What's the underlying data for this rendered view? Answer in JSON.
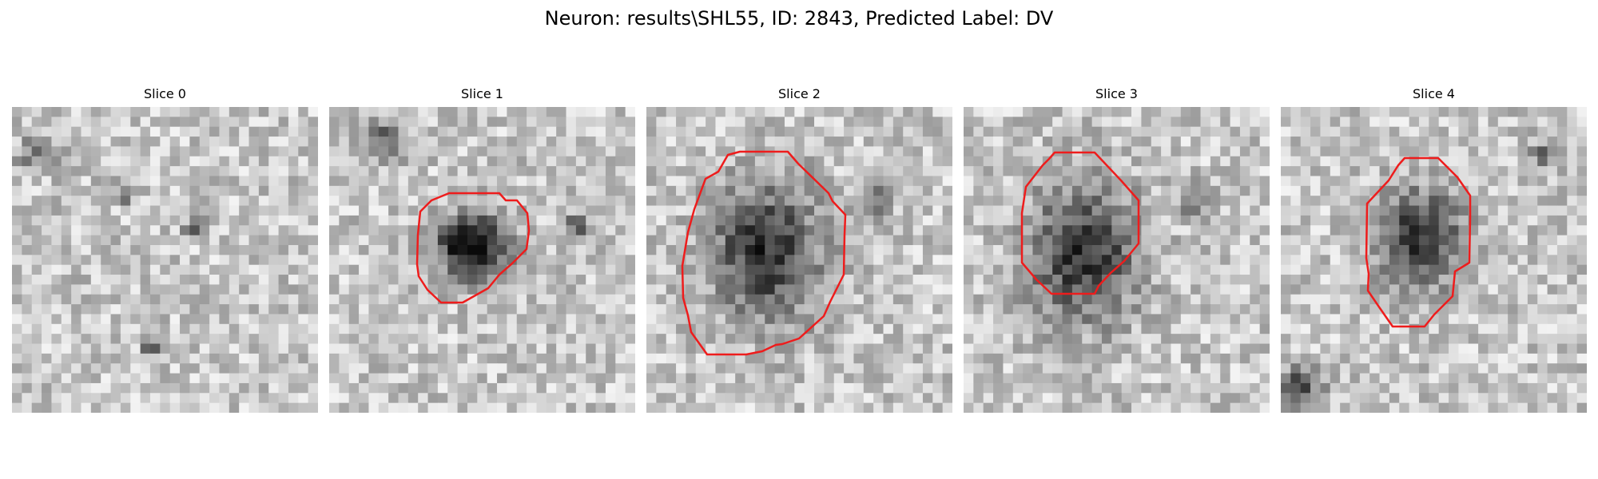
{
  "figure": {
    "title": "Neuron: results\\SHL55, ID: 2843, Predicted Label: DV",
    "colormap": "gray",
    "contour_color": "#ee1c1c",
    "grid_size": 31,
    "slices": [
      {
        "title": "Slice 0",
        "has_contour": false,
        "pattern": "scattered-texture"
      },
      {
        "title": "Slice 1",
        "has_contour": true,
        "pattern": "small-dark-blob"
      },
      {
        "title": "Slice 2",
        "has_contour": true,
        "pattern": "large-dark-blob"
      },
      {
        "title": "Slice 3",
        "has_contour": true,
        "pattern": "large-dark-blob"
      },
      {
        "title": "Slice 4",
        "has_contour": true,
        "pattern": "medium-dark-blob"
      }
    ]
  }
}
